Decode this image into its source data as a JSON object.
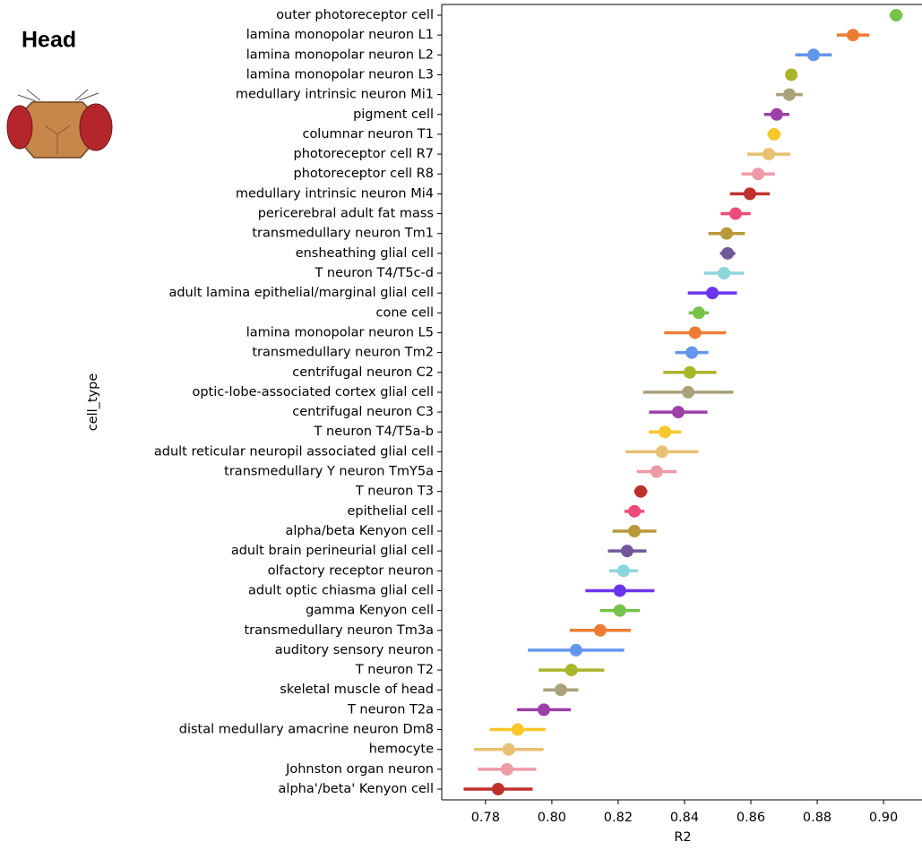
{
  "chart_data": {
    "type": "dot",
    "title": "Head",
    "x_label": "R2",
    "y_label": "cell_type",
    "categories": [
      "outer photoreceptor cell",
      "lamina monopolar neuron L1",
      "lamina monopolar neuron L2",
      "lamina monopolar neuron L3",
      "medullary intrinsic neuron Mi1",
      "pigment cell",
      "columnar neuron T1",
      "photoreceptor cell R7",
      "photoreceptor cell R8",
      "medullary intrinsic neuron Mi4",
      "pericerebral adult fat mass",
      "transmedullary neuron Tm1",
      "ensheathing glial cell",
      "T neuron T4/T5c-d",
      "adult lamina epithelial/marginal glial cell",
      "cone cell",
      "lamina monopolar neuron L5",
      "transmedullary neuron Tm2",
      "centrifugal neuron C2",
      "optic-lobe-associated cortex glial cell",
      "centrifugal neuron C3",
      "T neuron T4/T5a-b",
      "adult reticular neuropil associated glial cell",
      "transmedullary Y neuron TmY5a",
      "T neuron T3",
      "epithelial cell",
      "alpha/beta Kenyon cell",
      "adult brain perineurial glial cell",
      "olfactory receptor neuron",
      "adult optic chiasma glial cell",
      "gamma Kenyon cell",
      "transmedullary neuron Tm3a",
      "auditory sensory neuron",
      "T neuron T2",
      "skeletal muscle of head",
      "T neuron T2a",
      "distal medullary amacrine neuron Dm8",
      "hemocyte",
      "Johnston organ neuron",
      "alpha'/beta' Kenyon cell"
    ],
    "values": [
      0.9038,
      0.8908,
      0.8789,
      0.8722,
      0.8716,
      0.8678,
      0.867,
      0.8654,
      0.8622,
      0.8597,
      0.8554,
      0.8527,
      0.853,
      0.8519,
      0.8484,
      0.8443,
      0.8432,
      0.8422,
      0.8416,
      0.8411,
      0.8381,
      0.8341,
      0.8332,
      0.8316,
      0.8268,
      0.8249,
      0.8249,
      0.8227,
      0.8216,
      0.8205,
      0.8205,
      0.8146,
      0.8073,
      0.8059,
      0.8027,
      0.7976,
      0.7897,
      0.787,
      0.7865,
      0.7838
    ],
    "errors": [
      0.002,
      0.0049,
      0.0055,
      0.001,
      0.004,
      0.0038,
      0.002,
      0.0065,
      0.005,
      0.006,
      0.0045,
      0.0055,
      0.0023,
      0.006,
      0.0074,
      0.003,
      0.0093,
      0.005,
      0.008,
      0.0136,
      0.0088,
      0.0049,
      0.011,
      0.006,
      0.002,
      0.003,
      0.0066,
      0.0058,
      0.0043,
      0.0104,
      0.006,
      0.0092,
      0.0145,
      0.0099,
      0.0053,
      0.0081,
      0.0084,
      0.0105,
      0.0088,
      0.0104
    ],
    "colors": [
      "#77c34a",
      "#ee7d33",
      "#6495ed",
      "#a9b52a",
      "#a9a27a",
      "#9c3fa6",
      "#f7c72c",
      "#e7c072",
      "#ee9aa8",
      "#c0312b",
      "#ef4b7a",
      "#b8983a",
      "#71589a",
      "#8ed5db",
      "#6b35ee",
      "#77c34a",
      "#ee7d33",
      "#6495ed",
      "#a9b52a",
      "#a9a27a",
      "#9c3fa6",
      "#f7c72c",
      "#e7c072",
      "#ee9aa8",
      "#c0312b",
      "#ef4b7a",
      "#b8983a",
      "#71589a",
      "#8ed5db",
      "#6b35ee",
      "#77c34a",
      "#ee7d33",
      "#6495ed",
      "#a9b52a",
      "#a9a27a",
      "#9c3fa6",
      "#f7c72c",
      "#e7c072",
      "#ee9aa8",
      "#c0312b"
    ],
    "xlim": [
      0.7668,
      0.9116
    ],
    "xticks": [
      {
        "value": 0.78,
        "label": "0.78"
      },
      {
        "value": 0.8,
        "label": "0.80"
      },
      {
        "value": 0.82,
        "label": "0.82"
      },
      {
        "value": 0.84,
        "label": "0.84"
      },
      {
        "value": 0.86,
        "label": "0.86"
      },
      {
        "value": 0.88,
        "label": "0.88"
      },
      {
        "value": 0.9,
        "label": "0.90"
      }
    ]
  }
}
